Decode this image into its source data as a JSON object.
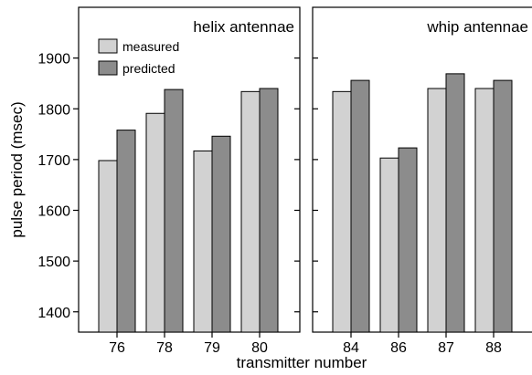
{
  "chart_data": {
    "type": "bar",
    "ylabel": "pulse period (msec)",
    "xlabel": "transmitter number",
    "ylim": [
      1360,
      2000
    ],
    "yticks": [
      1400,
      1500,
      1600,
      1700,
      1800,
      1900
    ],
    "grid": false,
    "legend": {
      "placement": "top-left of left panel",
      "entries": [
        "measured",
        "predicted"
      ]
    },
    "colors": {
      "measured": "#d2d2d2",
      "predicted": "#8c8c8c",
      "axis": "#000000"
    },
    "panels": [
      {
        "title": "helix antennae",
        "categories": [
          "76",
          "78",
          "79",
          "80"
        ],
        "series": [
          {
            "name": "measured",
            "values": [
              1698,
              1791,
              1717,
              1834
            ]
          },
          {
            "name": "predicted",
            "values": [
              1758,
              1838,
              1746,
              1840
            ]
          }
        ]
      },
      {
        "title": "whip antennae",
        "categories": [
          "84",
          "86",
          "87",
          "88"
        ],
        "series": [
          {
            "name": "measured",
            "values": [
              1834,
              1703,
              1840,
              1840
            ]
          },
          {
            "name": "predicted",
            "values": [
              1856,
              1723,
              1869,
              1856
            ]
          }
        ]
      }
    ]
  }
}
